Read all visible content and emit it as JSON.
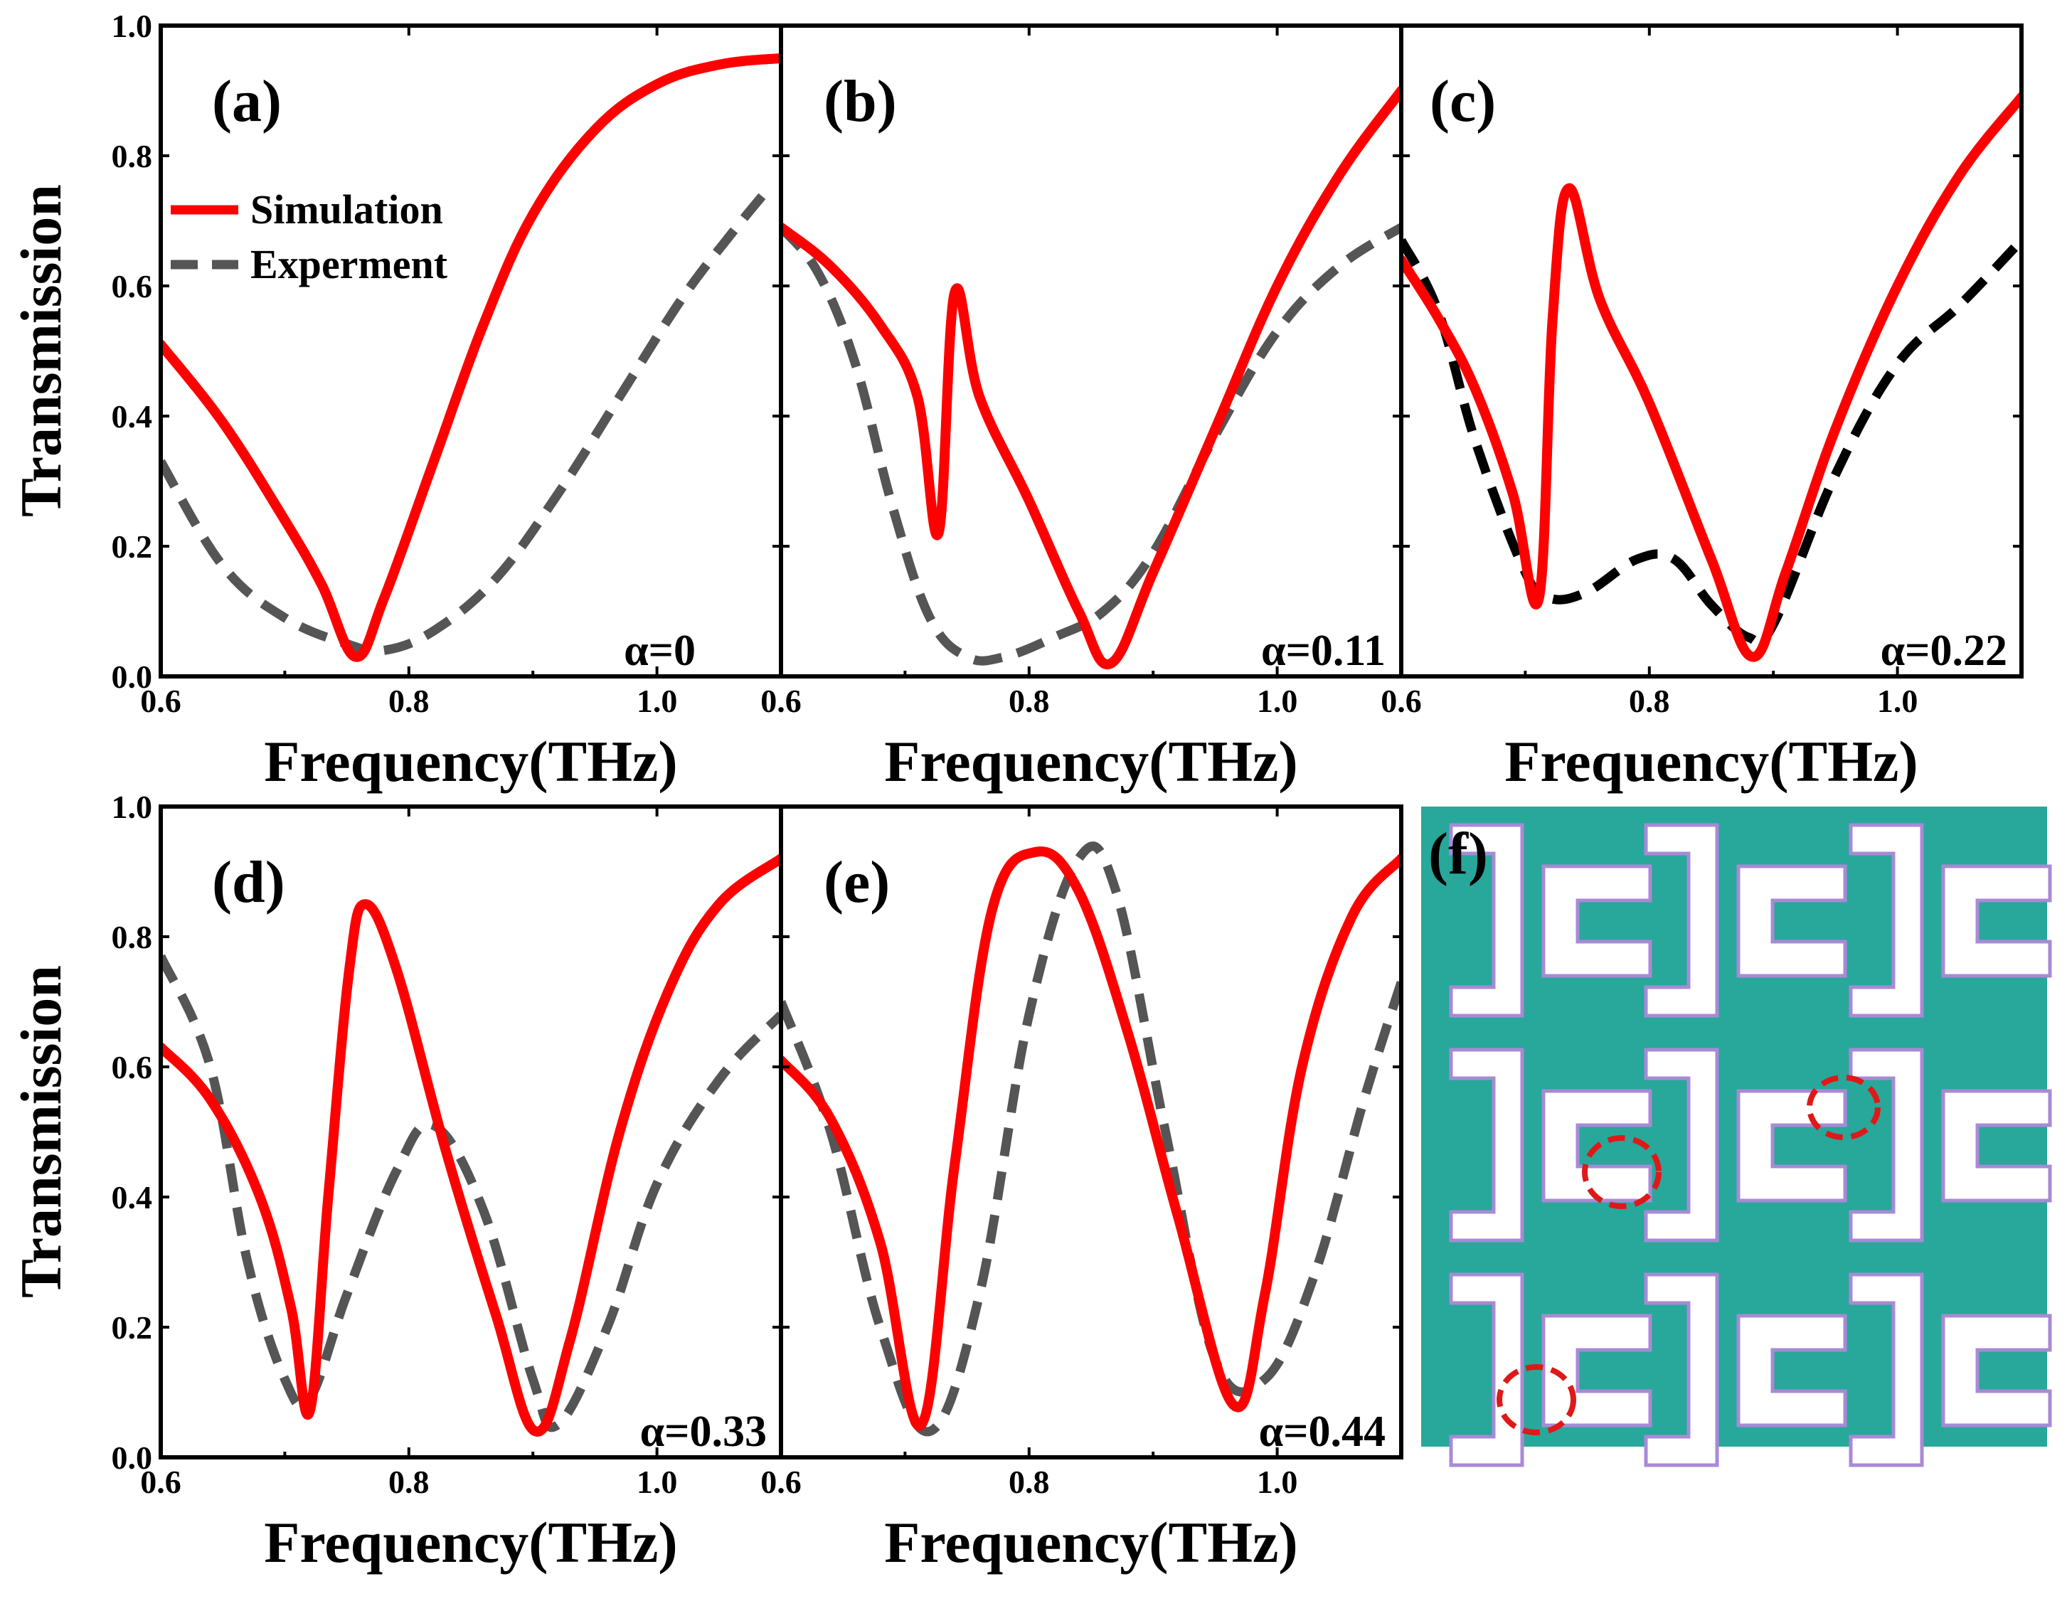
{
  "colors": {
    "simulation": "#ff0000",
    "experiment": "#555555",
    "experiment_panel_c": "#000000",
    "micrograph_bg": "#27a89a",
    "resonator_fill": "#ffffff",
    "resonator_edge": "#a98ad6",
    "defect_marker": "#e01818"
  },
  "legend": {
    "simulation": "Simulation",
    "experiment": "Experment"
  },
  "chart_data": [
    {
      "id": "a",
      "type": "line",
      "panel_label": "(a)",
      "annotation": "α=0",
      "xlabel": "Frequency(THz)",
      "ylabel": "Transmission",
      "xlim": [
        0.6,
        1.1
      ],
      "ylim": [
        0.0,
        1.0
      ],
      "xticks": [
        "0.6",
        "0.8",
        "1.0"
      ],
      "yticks": [
        "0.0",
        "0.2",
        "0.4",
        "0.6",
        "0.8",
        "1.0"
      ],
      "legend_position": "upper-left",
      "series": [
        {
          "name": "Simulation",
          "style": "solid",
          "x": [
            0.6,
            0.65,
            0.7,
            0.73,
            0.757,
            0.78,
            0.82,
            0.86,
            0.9,
            0.95,
            1.0,
            1.05,
            1.1
          ],
          "y": [
            0.51,
            0.39,
            0.24,
            0.14,
            0.03,
            0.12,
            0.33,
            0.54,
            0.71,
            0.84,
            0.91,
            0.94,
            0.95
          ]
        },
        {
          "name": "Experment",
          "style": "dashed",
          "x": [
            0.6,
            0.65,
            0.7,
            0.75,
            0.78,
            0.82,
            0.87,
            0.92,
            0.97,
            1.02,
            1.06,
            1.09
          ],
          "y": [
            0.33,
            0.17,
            0.09,
            0.05,
            0.04,
            0.07,
            0.15,
            0.28,
            0.43,
            0.58,
            0.68,
            0.75
          ]
        }
      ]
    },
    {
      "id": "b",
      "type": "line",
      "panel_label": "(b)",
      "annotation": "α=0.11",
      "xlabel": "Frequency(THz)",
      "ylabel": "",
      "xlim": [
        0.6,
        1.1
      ],
      "ylim": [
        0.0,
        1.0
      ],
      "xticks": [
        "0.6",
        "0.8",
        "1.0"
      ],
      "yticks": [],
      "series": [
        {
          "name": "Simulation",
          "style": "solid",
          "x": [
            0.6,
            0.64,
            0.68,
            0.71,
            0.727,
            0.74,
            0.76,
            0.8,
            0.84,
            0.866,
            0.9,
            0.95,
            1.0,
            1.05,
            1.1
          ],
          "y": [
            0.69,
            0.63,
            0.54,
            0.43,
            0.22,
            0.59,
            0.43,
            0.27,
            0.1,
            0.02,
            0.16,
            0.38,
            0.6,
            0.77,
            0.9
          ]
        },
        {
          "name": "Experment",
          "style": "dashed",
          "x": [
            0.6,
            0.63,
            0.66,
            0.69,
            0.72,
            0.75,
            0.78,
            0.82,
            0.86,
            0.9,
            0.95,
            1.0,
            1.05,
            1.1
          ],
          "y": [
            0.69,
            0.62,
            0.48,
            0.26,
            0.09,
            0.03,
            0.03,
            0.06,
            0.1,
            0.19,
            0.37,
            0.53,
            0.63,
            0.69
          ]
        }
      ]
    },
    {
      "id": "c",
      "type": "line",
      "panel_label": "(c)",
      "annotation": "α=0.22",
      "xlabel": "Frequency(THz)",
      "ylabel": "",
      "xlim": [
        0.6,
        1.1
      ],
      "ylim": [
        0.0,
        1.0
      ],
      "xticks": [
        "0.6",
        "0.8",
        "1.0"
      ],
      "yticks": [],
      "series": [
        {
          "name": "Simulation",
          "style": "solid",
          "x": [
            0.6,
            0.63,
            0.66,
            0.69,
            0.711,
            0.722,
            0.735,
            0.76,
            0.8,
            0.85,
            0.883,
            0.91,
            0.95,
            1.0,
            1.05,
            1.1
          ],
          "y": [
            0.64,
            0.55,
            0.44,
            0.28,
            0.12,
            0.55,
            0.75,
            0.58,
            0.42,
            0.18,
            0.03,
            0.16,
            0.38,
            0.6,
            0.77,
            0.89
          ]
        },
        {
          "name": "Experment",
          "style": "dashed",
          "x": [
            0.6,
            0.63,
            0.66,
            0.7,
            0.72,
            0.75,
            0.79,
            0.82,
            0.85,
            0.88,
            0.9,
            0.95,
            1.0,
            1.05,
            1.1
          ],
          "y": [
            0.67,
            0.56,
            0.36,
            0.16,
            0.12,
            0.13,
            0.18,
            0.18,
            0.11,
            0.06,
            0.08,
            0.31,
            0.48,
            0.57,
            0.67
          ]
        }
      ]
    },
    {
      "id": "d",
      "type": "line",
      "panel_label": "(d)",
      "annotation": "α=0.33",
      "xlabel": "Frequency(THz)",
      "ylabel": "Transmission",
      "xlim": [
        0.6,
        1.1
      ],
      "ylim": [
        0.0,
        1.0
      ],
      "xticks": [
        "0.6",
        "0.8",
        "1.0"
      ],
      "yticks": [
        "0.0",
        "0.2",
        "0.4",
        "0.6",
        "0.8",
        "1.0"
      ],
      "series": [
        {
          "name": "Simulation",
          "style": "solid",
          "x": [
            0.6,
            0.64,
            0.68,
            0.705,
            0.72,
            0.735,
            0.752,
            0.765,
            0.79,
            0.83,
            0.87,
            0.902,
            0.93,
            0.97,
            1.01,
            1.05,
            1.1
          ],
          "y": [
            0.63,
            0.55,
            0.4,
            0.23,
            0.07,
            0.4,
            0.75,
            0.85,
            0.75,
            0.47,
            0.22,
            0.04,
            0.18,
            0.5,
            0.72,
            0.85,
            0.92
          ]
        },
        {
          "name": "Experment",
          "style": "dashed",
          "x": [
            0.6,
            0.64,
            0.67,
            0.7,
            0.72,
            0.75,
            0.79,
            0.82,
            0.86,
            0.9,
            0.92,
            0.96,
            1.0,
            1.05,
            1.1
          ],
          "y": [
            0.77,
            0.6,
            0.3,
            0.12,
            0.09,
            0.25,
            0.44,
            0.51,
            0.38,
            0.12,
            0.05,
            0.2,
            0.42,
            0.58,
            0.68
          ]
        }
      ]
    },
    {
      "id": "e",
      "type": "line",
      "panel_label": "(e)",
      "annotation": "α=0.44",
      "xlabel": "Frequency(THz)",
      "ylabel": "",
      "xlim": [
        0.6,
        1.1
      ],
      "ylim": [
        0.0,
        1.0
      ],
      "xticks": [
        "0.6",
        "0.8",
        "1.0"
      ],
      "yticks": [],
      "series": [
        {
          "name": "Simulation",
          "style": "solid",
          "x": [
            0.6,
            0.64,
            0.68,
            0.713,
            0.74,
            0.77,
            0.805,
            0.84,
            0.88,
            0.92,
            0.965,
            0.99,
            1.02,
            1.06,
            1.1
          ],
          "y": [
            0.61,
            0.52,
            0.33,
            0.05,
            0.45,
            0.84,
            0.93,
            0.87,
            0.65,
            0.37,
            0.08,
            0.25,
            0.6,
            0.83,
            0.92
          ]
        },
        {
          "name": "Experment",
          "style": "dashed",
          "x": [
            0.6,
            0.64,
            0.68,
            0.72,
            0.76,
            0.8,
            0.84,
            0.87,
            0.91,
            0.95,
            0.99,
            1.03,
            1.07,
            1.1
          ],
          "y": [
            0.7,
            0.5,
            0.2,
            0.04,
            0.25,
            0.68,
            0.92,
            0.87,
            0.5,
            0.15,
            0.12,
            0.28,
            0.55,
            0.73
          ]
        }
      ]
    }
  ],
  "panel_f": {
    "label": "(f)"
  }
}
